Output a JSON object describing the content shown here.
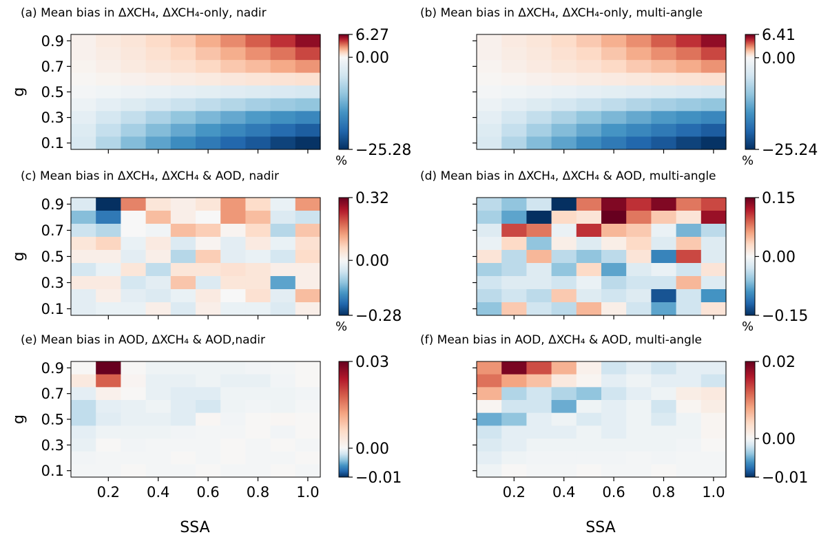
{
  "figure": {
    "xlabel": "SSA",
    "ylabel": "g"
  },
  "chart_data": [
    {
      "type": "heatmap",
      "title": "(a) Mean bias in ΔXCH₄, ΔXCH₄-only, nadir",
      "x_ticks": [
        "0.2",
        "0.4",
        "0.6",
        "0.8",
        "1.0"
      ],
      "y_ticks": [
        "0.1",
        "0.3",
        "0.5",
        "0.7",
        "0.9"
      ],
      "x": [
        0.1,
        0.2,
        0.3,
        0.4,
        0.5,
        0.6,
        0.7,
        0.8,
        0.9,
        1.0
      ],
      "y": [
        0.9,
        0.8,
        0.7,
        0.6,
        0.5,
        0.4,
        0.3,
        0.2,
        0.1
      ],
      "z_range": [
        -25.28,
        6.27
      ],
      "colorbar_ticks": [
        "6.27",
        "0.00",
        "−25.28"
      ],
      "colorbar_unit": "%",
      "colormap": "RdBu_r",
      "values": [
        [
          0.3,
          0.6,
          0.8,
          1.2,
          1.6,
          2.3,
          3.0,
          3.8,
          4.6,
          5.6
        ],
        [
          0.3,
          0.5,
          0.7,
          1.0,
          1.3,
          1.8,
          2.3,
          2.9,
          3.4,
          4.2
        ],
        [
          0.2,
          0.4,
          0.6,
          0.8,
          1.0,
          1.3,
          1.7,
          2.0,
          2.4,
          2.8
        ],
        [
          0.1,
          0.2,
          0.3,
          0.4,
          0.5,
          0.6,
          0.7,
          0.8,
          0.9,
          1.0
        ],
        [
          -0.5,
          -0.9,
          -1.3,
          -1.7,
          -2.2,
          -2.6,
          -3.0,
          -3.5,
          -3.9,
          -4.3
        ],
        [
          -1.5,
          -2.5,
          -3.5,
          -4.5,
          -5.5,
          -6.5,
          -7.5,
          -8.5,
          -9.3,
          -10.0
        ],
        [
          -2.5,
          -4.5,
          -6.2,
          -8.0,
          -10.0,
          -11.5,
          -13.0,
          -14.5,
          -15.5,
          -16.5
        ],
        [
          -3.5,
          -6.0,
          -8.5,
          -11.0,
          -13.0,
          -15.0,
          -16.5,
          -18.0,
          -19.5,
          -21.0
        ],
        [
          -4.0,
          -7.5,
          -11.0,
          -13.5,
          -16.0,
          -18.0,
          -20.0,
          -21.5,
          -23.5,
          -25.0
        ]
      ]
    },
    {
      "type": "heatmap",
      "title": "(b) Mean bias in ΔXCH₄, ΔXCH₄-only, multi-angle",
      "x_ticks": [
        "0.2",
        "0.4",
        "0.6",
        "0.8",
        "1.0"
      ],
      "y_ticks": [
        "0.1",
        "0.3",
        "0.5",
        "0.7",
        "0.9"
      ],
      "x": [
        0.1,
        0.2,
        0.3,
        0.4,
        0.5,
        0.6,
        0.7,
        0.8,
        0.9,
        1.0
      ],
      "y": [
        0.9,
        0.8,
        0.7,
        0.6,
        0.5,
        0.4,
        0.3,
        0.2,
        0.1
      ],
      "z_range": [
        -25.24,
        6.41
      ],
      "colorbar_ticks": [
        "6.41",
        "0.00",
        "−25.24"
      ],
      "colorbar_unit": "%",
      "colormap": "RdBu_r",
      "values": [
        [
          0.3,
          0.6,
          0.8,
          1.2,
          1.7,
          2.3,
          3.0,
          3.9,
          4.7,
          5.7
        ],
        [
          0.3,
          0.5,
          0.7,
          1.0,
          1.3,
          1.8,
          2.4,
          3.0,
          3.5,
          4.3
        ],
        [
          0.2,
          0.4,
          0.6,
          0.8,
          1.0,
          1.3,
          1.7,
          2.0,
          2.4,
          2.9
        ],
        [
          0.1,
          0.2,
          0.3,
          0.4,
          0.5,
          0.6,
          0.7,
          0.8,
          0.9,
          1.0
        ],
        [
          -0.5,
          -0.9,
          -1.3,
          -1.7,
          -2.2,
          -2.6,
          -3.0,
          -3.5,
          -3.9,
          -4.3
        ],
        [
          -1.5,
          -2.5,
          -3.5,
          -4.5,
          -5.5,
          -6.5,
          -7.5,
          -8.5,
          -9.3,
          -10.0
        ],
        [
          -2.5,
          -4.5,
          -6.2,
          -8.0,
          -10.0,
          -11.5,
          -13.0,
          -14.5,
          -15.5,
          -16.5
        ],
        [
          -3.5,
          -6.0,
          -8.5,
          -11.0,
          -13.0,
          -15.0,
          -16.5,
          -18.0,
          -19.5,
          -21.0
        ],
        [
          -4.0,
          -7.5,
          -11.0,
          -13.5,
          -16.0,
          -18.0,
          -20.0,
          -21.5,
          -23.5,
          -25.0
        ]
      ]
    },
    {
      "type": "heatmap",
      "title": "(c) Mean bias in ΔXCH₄, ΔXCH₄ & AOD, nadir",
      "x_ticks": [
        "0.2",
        "0.4",
        "0.6",
        "0.8",
        "1.0"
      ],
      "y_ticks": [
        "0.1",
        "0.3",
        "0.5",
        "0.7",
        "0.9"
      ],
      "x": [
        0.1,
        0.2,
        0.3,
        0.4,
        0.5,
        0.6,
        0.7,
        0.8,
        0.9,
        1.0
      ],
      "y": [
        0.9,
        0.8,
        0.7,
        0.6,
        0.5,
        0.4,
        0.3,
        0.2,
        0.1
      ],
      "z_range": [
        -0.28,
        0.32
      ],
      "colorbar_ticks": [
        "0.32",
        "0.00",
        "−0.28"
      ],
      "colorbar_unit": "%",
      "colormap": "RdBu_r",
      "values": [
        [
          -0.04,
          -0.28,
          0.16,
          0.04,
          0.02,
          0.04,
          0.14,
          0.06,
          -0.02,
          0.14
        ],
        [
          -0.12,
          -0.2,
          0.0,
          0.1,
          0.02,
          0.0,
          0.14,
          0.1,
          -0.04,
          -0.06
        ],
        [
          -0.06,
          -0.08,
          0.0,
          -0.01,
          0.1,
          0.08,
          0.01,
          0.06,
          -0.08,
          0.09
        ],
        [
          0.04,
          0.07,
          -0.02,
          0.03,
          -0.04,
          0.01,
          -0.03,
          0.03,
          -0.02,
          0.05
        ],
        [
          0.02,
          0.02,
          -0.03,
          0.02,
          -0.08,
          0.08,
          -0.03,
          -0.02,
          -0.05,
          0.06
        ],
        [
          -0.05,
          -0.02,
          0.04,
          -0.07,
          0.04,
          0.04,
          0.05,
          0.04,
          0.02,
          0.02
        ],
        [
          0.03,
          0.03,
          -0.05,
          -0.03,
          0.09,
          -0.04,
          0.04,
          0.04,
          -0.15,
          0.02
        ],
        [
          -0.03,
          0.02,
          -0.03,
          -0.04,
          -0.02,
          0.03,
          0.0,
          0.05,
          -0.03,
          0.1
        ],
        [
          -0.03,
          -0.02,
          -0.02,
          0.02,
          -0.04,
          0.02,
          -0.02,
          -0.02,
          -0.04,
          0.02
        ]
      ]
    },
    {
      "type": "heatmap",
      "title": "(d) Mean bias in ΔXCH₄, ΔXCH₄ & AOD, multi-angle",
      "x_ticks": [
        "0.2",
        "0.4",
        "0.6",
        "0.8",
        "1.0"
      ],
      "y_ticks": [
        "0.1",
        "0.3",
        "0.5",
        "0.7",
        "0.9"
      ],
      "x": [
        0.1,
        0.2,
        0.3,
        0.4,
        0.5,
        0.6,
        0.7,
        0.8,
        0.9,
        1.0
      ],
      "y": [
        0.9,
        0.8,
        0.7,
        0.6,
        0.5,
        0.4,
        0.3,
        0.2,
        0.1
      ],
      "z_range": [
        -0.15,
        0.15
      ],
      "colorbar_ticks": [
        "0.15",
        "0.00",
        "−0.15"
      ],
      "colorbar_unit": "%",
      "colormap": "RdBu_r",
      "values": [
        [
          -0.04,
          -0.06,
          -0.03,
          -0.15,
          0.08,
          0.14,
          0.11,
          0.14,
          0.08,
          0.1
        ],
        [
          -0.05,
          -0.08,
          -0.15,
          0.03,
          0.02,
          0.15,
          0.08,
          0.04,
          0.02,
          0.13
        ],
        [
          -0.02,
          0.1,
          0.08,
          -0.01,
          0.11,
          0.05,
          0.04,
          -0.01,
          -0.07,
          -0.04
        ],
        [
          -0.01,
          0.03,
          -0.06,
          0.01,
          -0.02,
          0.01,
          0.03,
          -0.02,
          0.04,
          -0.02
        ],
        [
          0.02,
          -0.04,
          0.05,
          -0.04,
          -0.06,
          -0.04,
          0.02,
          -0.1,
          0.1,
          -0.02
        ],
        [
          -0.05,
          -0.04,
          -0.02,
          -0.06,
          0.03,
          -0.08,
          -0.02,
          -0.01,
          -0.03,
          0.02
        ],
        [
          -0.03,
          -0.02,
          -0.02,
          -0.03,
          -0.01,
          -0.04,
          -0.03,
          -0.03,
          0.05,
          -0.02
        ],
        [
          -0.04,
          -0.03,
          -0.04,
          0.04,
          -0.02,
          -0.03,
          -0.02,
          -0.13,
          -0.03,
          -0.09
        ],
        [
          -0.06,
          0.04,
          -0.03,
          -0.04,
          0.05,
          0.01,
          -0.03,
          -0.08,
          -0.03,
          0.02
        ]
      ]
    },
    {
      "type": "heatmap",
      "title": "(e) Mean bias in AOD, ΔXCH₄ & AOD,nadir",
      "x_ticks": [
        "0.2",
        "0.4",
        "0.6",
        "0.8",
        "1.0"
      ],
      "y_ticks": [
        "0.1",
        "0.3",
        "0.5",
        "0.7",
        "0.9"
      ],
      "x": [
        0.1,
        0.2,
        0.3,
        0.4,
        0.5,
        0.6,
        0.7,
        0.8,
        0.9,
        1.0
      ],
      "y": [
        0.9,
        0.8,
        0.7,
        0.6,
        0.5,
        0.4,
        0.3,
        0.2,
        0.1
      ],
      "z_range": [
        -0.01,
        0.03
      ],
      "colorbar_ticks": [
        "0.03",
        "0.00",
        "−0.01"
      ],
      "colorbar_unit": "",
      "colormap": "RdBu_r",
      "values": [
        [
          0.0003,
          0.03,
          0.0003,
          -0.0005,
          -0.0005,
          -0.0005,
          -0.0005,
          -0.0003,
          -0.0002,
          0.0002
        ],
        [
          0.003,
          0.018,
          0.0008,
          -0.0008,
          -0.0008,
          -0.0005,
          -0.0008,
          -0.0008,
          -0.0003,
          0.0002
        ],
        [
          -0.001,
          0.0015,
          0.0003,
          -0.0008,
          -0.0012,
          -0.0012,
          -0.0005,
          -0.0005,
          -0.0005,
          -0.0003
        ],
        [
          -0.0025,
          -0.001,
          -0.0008,
          -0.0005,
          -0.0012,
          -0.0018,
          -0.0005,
          -0.0003,
          -0.0005,
          -0.0002
        ],
        [
          -0.0025,
          -0.0012,
          -0.0008,
          -0.0008,
          -0.0012,
          0.0005,
          -0.0003,
          0.0003,
          0.0005,
          0.0002
        ],
        [
          -0.001,
          -0.0005,
          -0.0005,
          -0.0005,
          -0.0003,
          -0.0002,
          -0.0002,
          0.0002,
          -0.0003,
          0.0003
        ],
        [
          -0.0008,
          0.0003,
          -0.0003,
          -0.0002,
          -0.0002,
          -0.0002,
          0.0002,
          -0.0002,
          0.0002,
          -0.0002
        ],
        [
          -0.0003,
          -0.0002,
          -0.0002,
          -0.0002,
          0.0002,
          -0.0002,
          0.0002,
          -0.0002,
          -0.0002,
          0.0002
        ],
        [
          -0.0002,
          -0.0002,
          0.0002,
          -0.0002,
          -0.0002,
          0.0002,
          -0.0002,
          -0.0002,
          0.0002,
          -0.0002
        ]
      ]
    },
    {
      "type": "heatmap",
      "title": "(f) Mean bias in AOD, ΔXCH₄ & AOD, multi-angle",
      "x_ticks": [
        "0.2",
        "0.4",
        "0.6",
        "0.8",
        "1.0"
      ],
      "y_ticks": [
        "0.1",
        "0.3",
        "0.5",
        "0.7",
        "0.9"
      ],
      "x": [
        0.1,
        0.2,
        0.3,
        0.4,
        0.5,
        0.6,
        0.7,
        0.8,
        0.9,
        1.0
      ],
      "y": [
        0.9,
        0.8,
        0.7,
        0.6,
        0.5,
        0.4,
        0.3,
        0.2,
        0.1
      ],
      "z_range": [
        -0.01,
        0.02
      ],
      "colorbar_ticks": [
        "0.02",
        "0.00",
        "−0.01"
      ],
      "colorbar_unit": "",
      "colormap": "RdBu_r",
      "values": [
        [
          0.009,
          0.019,
          0.013,
          0.007,
          0.001,
          -0.002,
          -0.001,
          -0.002,
          -0.001,
          -0.001
        ],
        [
          0.011,
          0.008,
          0.006,
          0.002,
          0.0005,
          -0.001,
          -0.0005,
          -0.001,
          -0.001,
          -0.002
        ],
        [
          0.007,
          -0.003,
          -0.002,
          -0.003,
          -0.004,
          -0.002,
          -0.001,
          -0.0005,
          0.0015,
          0.002
        ],
        [
          0.0005,
          -0.002,
          -0.002,
          -0.005,
          -0.0005,
          -0.001,
          -0.0005,
          -0.002,
          0.0005,
          0.0015
        ],
        [
          -0.005,
          -0.004,
          -0.001,
          -0.0005,
          -0.0015,
          -0.001,
          -0.0005,
          -0.0015,
          -0.0005,
          0.0005
        ],
        [
          -0.002,
          -0.001,
          -0.001,
          -0.001,
          -0.0005,
          -0.001,
          -0.0005,
          -0.0005,
          -0.0005,
          0.0005
        ],
        [
          -0.0015,
          -0.001,
          -0.0005,
          -0.0005,
          -0.0005,
          -0.0005,
          -0.0005,
          -0.0005,
          -0.0003,
          0.0002
        ],
        [
          -0.001,
          -0.0005,
          -0.0003,
          -0.0003,
          -0.0003,
          -0.0003,
          -0.0002,
          -0.0003,
          -0.0002,
          -0.0002
        ],
        [
          -0.0005,
          0.0002,
          -0.0002,
          -0.0002,
          0.0002,
          -0.0002,
          -0.0002,
          0.0002,
          -0.0002,
          -0.0002
        ]
      ]
    }
  ]
}
